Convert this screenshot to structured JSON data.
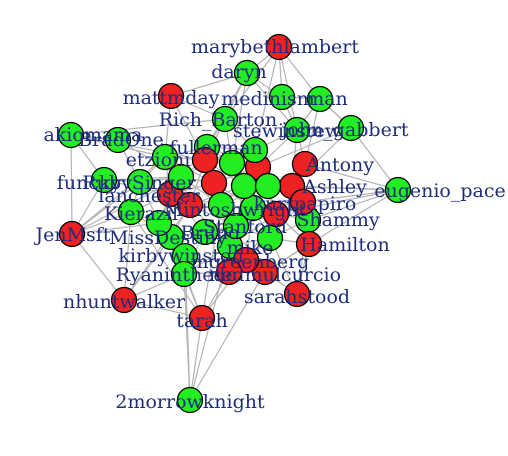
{
  "colors": {
    "green": "#22ee22",
    "red": "#ee2222",
    "edge": "#b3b3b3",
    "label": "#1f2d7a"
  },
  "nodes": [
    {
      "id": "2morrowknight",
      "color": "green"
    },
    {
      "id": "tarah",
      "color": "red"
    },
    {
      "id": "nhuntwalker",
      "color": "red"
    },
    {
      "id": "sarahstood",
      "color": "red"
    },
    {
      "id": "eugenio_pace",
      "color": "green"
    },
    {
      "id": "JenMsft",
      "color": "red"
    },
    {
      "id": "marybethlambert",
      "color": "red"
    },
    {
      "id": "daryn",
      "color": "green"
    },
    {
      "id": "mattmday",
      "color": "red"
    },
    {
      "id": "medinism",
      "color": "green"
    },
    {
      "id": "man",
      "color": "green"
    },
    {
      "id": "akiomama",
      "color": "green"
    },
    {
      "id": "BradOne",
      "color": "green"
    },
    {
      "id": "Rich_Barton",
      "color": "green"
    },
    {
      "id": "stewinstew",
      "color": "green"
    },
    {
      "id": "john_gabbert",
      "color": "green"
    },
    {
      "id": "fullerman",
      "color": "green"
    },
    {
      "id": "etzioni",
      "color": "green"
    },
    {
      "id": "Antony",
      "color": "red"
    },
    {
      "id": "funcky",
      "color": "green"
    },
    {
      "id": "RubySinger",
      "color": "green"
    },
    {
      "id": "lanchester",
      "color": "red"
    },
    {
      "id": "Ashley",
      "color": "red"
    },
    {
      "id": "Kierazil",
      "color": "green"
    },
    {
      "id": "Mintoshwright",
      "color": "green"
    },
    {
      "id": "Shammy",
      "color": "green"
    },
    {
      "id": "MissDestiny",
      "color": "green"
    },
    {
      "id": "Hamilton",
      "color": "red"
    },
    {
      "id": "kirbywinston",
      "color": "green"
    },
    {
      "id": "mike",
      "color": "green"
    },
    {
      "id": "Ryaninthedc",
      "color": "green"
    },
    {
      "id": "nedmulcurcio",
      "color": "red"
    },
    {
      "id": "kurtpapiro",
      "color": "red"
    },
    {
      "id": "Stanford",
      "color": "green"
    },
    {
      "id": "Bruno",
      "color": "green"
    },
    {
      "id": "mgreenberg",
      "color": "red"
    },
    {
      "id": "c1",
      "color": "red"
    },
    {
      "id": "c2",
      "color": "green"
    },
    {
      "id": "c3",
      "color": "red"
    },
    {
      "id": "c4",
      "color": "green"
    },
    {
      "id": "c5",
      "color": "red"
    },
    {
      "id": "c6",
      "color": "green"
    },
    {
      "id": "c7",
      "color": "green"
    },
    {
      "id": "c8",
      "color": "red"
    },
    {
      "id": "c9",
      "color": "green"
    },
    {
      "id": "c10",
      "color": "red"
    },
    {
      "id": "c11",
      "color": "green"
    },
    {
      "id": "c12",
      "color": "green"
    },
    {
      "id": "c13",
      "color": "red"
    },
    {
      "id": "c14",
      "color": "green"
    }
  ],
  "labels": [
    {
      "node": "marybethlambert",
      "text": "marybethlambert"
    },
    {
      "node": "daryn",
      "text": "daryn"
    },
    {
      "node": "mattmday",
      "text": "mattmday"
    },
    {
      "node": "medinism",
      "text": "medinism"
    },
    {
      "node": "man",
      "text": "man"
    },
    {
      "node": "akiomama",
      "text": "akiomama"
    },
    {
      "node": "BradOne",
      "text": "BradOne"
    },
    {
      "node": "Rich_Barton",
      "text": "Rich_Barton"
    },
    {
      "node": "stewinstew",
      "text": "stewinstew"
    },
    {
      "node": "john_gabbert",
      "text": "john_gabbert"
    },
    {
      "node": "fullerman",
      "text": "fullerman"
    },
    {
      "node": "etzioni",
      "text": "etzioni"
    },
    {
      "node": "Antony",
      "text": "Antony"
    },
    {
      "node": "funcky",
      "text": "funcky"
    },
    {
      "node": "RubySinger",
      "text": "RubySinger"
    },
    {
      "node": "lanchester",
      "text": "lanchester"
    },
    {
      "node": "Ashley",
      "text": "Ashley"
    },
    {
      "node": "eugenio_pace",
      "text": "eugenio_pace"
    },
    {
      "node": "Kierazil",
      "text": "Kierazil"
    },
    {
      "node": "Mintoshwright",
      "text": "Mintoshwright"
    },
    {
      "node": "Shammy",
      "text": "Shammy"
    },
    {
      "node": "JenMsft",
      "text": "JenMsft"
    },
    {
      "node": "MissDestiny",
      "text": "MissDestiny"
    },
    {
      "node": "Hamilton",
      "text": "Hamilton"
    },
    {
      "node": "kirbywinston",
      "text": "kirbywinston"
    },
    {
      "node": "mike",
      "text": "mike"
    },
    {
      "node": "Ryaninthedc",
      "text": "Ryaninthedc"
    },
    {
      "node": "nedmulcurcio",
      "text": "nedmulcurcio"
    },
    {
      "node": "kurtpapiro",
      "text": "kurtpapiro"
    },
    {
      "node": "Stanford",
      "text": "Stanford"
    },
    {
      "node": "Bruno",
      "text": "Bruno"
    },
    {
      "node": "mgreenberg",
      "text": "mgreenberg"
    },
    {
      "node": "sarahstood",
      "text": "sarahstood"
    },
    {
      "node": "nhuntwalker",
      "text": "nhuntwalker"
    },
    {
      "node": "tarah",
      "text": "tarah"
    },
    {
      "node": "2morrowknight",
      "text": "2morrowknight"
    }
  ]
}
